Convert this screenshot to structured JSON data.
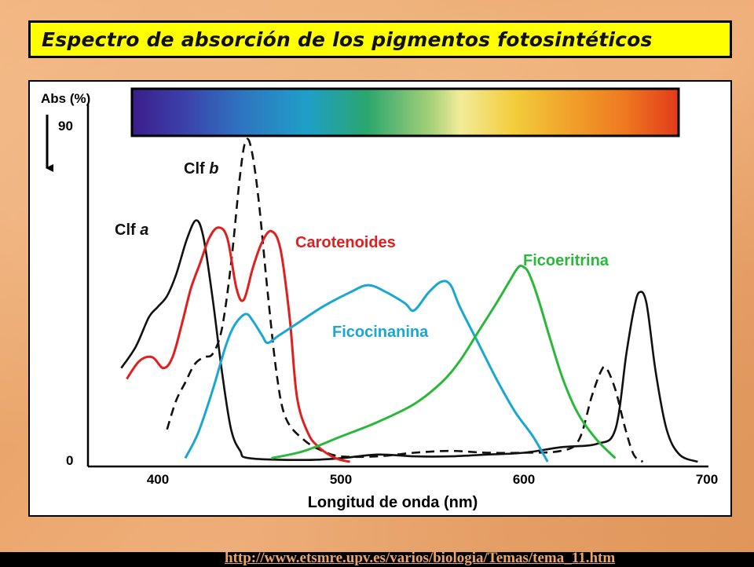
{
  "title": "Espectro de absorción de los pigmentos fotosintéticos",
  "source_url": "http://www.etsmre.upv.es/varios/biologia/Temas/tema_11.htm",
  "colors": {
    "clf_a": "#111111",
    "clf_b": "#111111",
    "carotenoides": "#e02020",
    "ficocianina": "#1aa7d0",
    "ficoeritrina": "#2ab83a",
    "title_bg": "#ffff00"
  },
  "chart_data": {
    "type": "line",
    "ylabel": "Abs (%)",
    "xlabel": "Longitud de onda (nm)",
    "y_ticks": [
      "90",
      "0"
    ],
    "x_ticks": [
      "400",
      "500",
      "600",
      "700"
    ],
    "xlim": [
      375,
      700
    ],
    "ylim": [
      0,
      90
    ],
    "spectrum_bar": true,
    "series": [
      {
        "name": "Clf a",
        "name_main": "Clf ",
        "name_italic": "a",
        "dash": false,
        "colorKey": "clf_a",
        "points": [
          [
            380,
            26
          ],
          [
            388,
            32
          ],
          [
            395,
            40
          ],
          [
            400,
            43
          ],
          [
            405,
            46
          ],
          [
            410,
            52
          ],
          [
            416,
            62
          ],
          [
            421,
            67
          ],
          [
            425,
            62
          ],
          [
            430,
            45
          ],
          [
            435,
            25
          ],
          [
            440,
            9
          ],
          [
            445,
            3
          ],
          [
            450,
            1
          ],
          [
            480,
            0.5
          ],
          [
            500,
            1
          ],
          [
            520,
            2
          ],
          [
            540,
            1.5
          ],
          [
            560,
            1.5
          ],
          [
            580,
            2
          ],
          [
            600,
            2.5
          ],
          [
            620,
            4
          ],
          [
            640,
            5
          ],
          [
            650,
            9
          ],
          [
            656,
            30
          ],
          [
            660,
            42
          ],
          [
            663,
            47
          ],
          [
            667,
            44
          ],
          [
            672,
            25
          ],
          [
            678,
            9
          ],
          [
            685,
            2
          ],
          [
            695,
            0
          ]
        ]
      },
      {
        "name": "Clf b",
        "name_main": "Clf ",
        "name_italic": "b",
        "dash": true,
        "colorKey": "clf_b",
        "points": [
          [
            405,
            9
          ],
          [
            410,
            17
          ],
          [
            415,
            22
          ],
          [
            420,
            27
          ],
          [
            425,
            29
          ],
          [
            430,
            30
          ],
          [
            435,
            37
          ],
          [
            440,
            55
          ],
          [
            445,
            80
          ],
          [
            448,
            89
          ],
          [
            451,
            87
          ],
          [
            455,
            73
          ],
          [
            460,
            47
          ],
          [
            465,
            24
          ],
          [
            470,
            12
          ],
          [
            480,
            6
          ],
          [
            490,
            3
          ],
          [
            500,
            1.5
          ],
          [
            520,
            1.5
          ],
          [
            540,
            2.5
          ],
          [
            560,
            3
          ],
          [
            580,
            2.5
          ],
          [
            600,
            2.5
          ],
          [
            620,
            3
          ],
          [
            630,
            6
          ],
          [
            637,
            18
          ],
          [
            642,
            25
          ],
          [
            645,
            26
          ],
          [
            650,
            20
          ],
          [
            655,
            10
          ],
          [
            660,
            2
          ],
          [
            665,
            0
          ]
        ]
      },
      {
        "name": "Carotenoides",
        "name_main": "Carotenoides",
        "name_italic": "",
        "dash": false,
        "colorKey": "carotenoides",
        "points": [
          [
            383,
            23
          ],
          [
            390,
            28
          ],
          [
            397,
            29
          ],
          [
            403,
            26
          ],
          [
            408,
            29
          ],
          [
            413,
            38
          ],
          [
            418,
            48
          ],
          [
            423,
            55
          ],
          [
            428,
            62
          ],
          [
            433,
            65
          ],
          [
            438,
            62
          ],
          [
            443,
            48
          ],
          [
            447,
            45
          ],
          [
            452,
            54
          ],
          [
            457,
            61
          ],
          [
            462,
            64
          ],
          [
            467,
            59
          ],
          [
            472,
            40
          ],
          [
            476,
            18
          ],
          [
            482,
            8
          ],
          [
            488,
            4
          ],
          [
            495,
            1.5
          ],
          [
            500,
            0.5
          ],
          [
            505,
            0
          ]
        ]
      },
      {
        "name": "Ficocinanina",
        "name_main": "Ficocinanina",
        "name_italic": "",
        "dash": false,
        "colorKey": "ficocianina",
        "points": [
          [
            415,
            1
          ],
          [
            422,
            8
          ],
          [
            430,
            20
          ],
          [
            437,
            32
          ],
          [
            442,
            38
          ],
          [
            448,
            41
          ],
          [
            452,
            39
          ],
          [
            457,
            35
          ],
          [
            460,
            33
          ],
          [
            466,
            35
          ],
          [
            475,
            38
          ],
          [
            490,
            43
          ],
          [
            505,
            47
          ],
          [
            515,
            49
          ],
          [
            525,
            47
          ],
          [
            535,
            44
          ],
          [
            540,
            42
          ],
          [
            548,
            47
          ],
          [
            555,
            50
          ],
          [
            560,
            49
          ],
          [
            565,
            43
          ],
          [
            575,
            33
          ],
          [
            585,
            23
          ],
          [
            595,
            14
          ],
          [
            605,
            7
          ],
          [
            613,
            0
          ]
        ]
      },
      {
        "name": "Ficoeritrina",
        "name_main": "Ficoeritrina",
        "name_italic": "",
        "dash": false,
        "colorKey": "ficoeritrina",
        "points": [
          [
            462,
            1
          ],
          [
            480,
            3
          ],
          [
            500,
            7
          ],
          [
            520,
            11
          ],
          [
            540,
            16
          ],
          [
            555,
            22
          ],
          [
            565,
            28
          ],
          [
            575,
            36
          ],
          [
            585,
            44
          ],
          [
            592,
            50
          ],
          [
            597,
            54
          ],
          [
            600,
            54
          ],
          [
            603,
            52
          ],
          [
            608,
            45
          ],
          [
            615,
            33
          ],
          [
            622,
            22
          ],
          [
            630,
            13
          ],
          [
            640,
            6
          ],
          [
            650,
            1
          ]
        ]
      }
    ]
  }
}
